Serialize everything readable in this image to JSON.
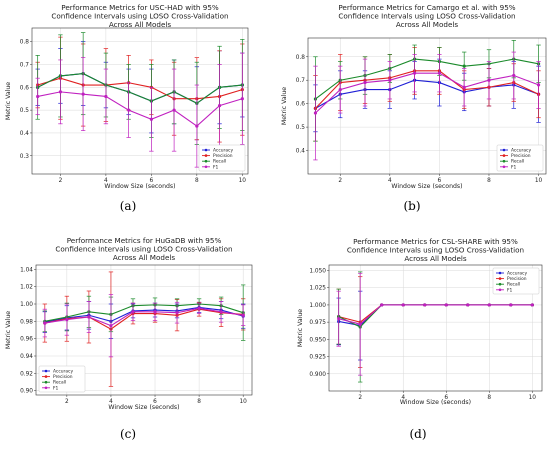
{
  "chart_data": [
    {
      "type": "line",
      "panel_label": "(a)",
      "title": [
        "Performance Metrics for USC-HAD with 95%",
        "Confidence Intervals using LOSO Cross-Validation",
        "Across All Models"
      ],
      "xlabel": "Window Size (seconds)",
      "ylabel": "Metric Value",
      "xlim": [
        0.75,
        10.25
      ],
      "ylim": [
        0.22,
        0.86
      ],
      "xticks": [
        2,
        4,
        6,
        8,
        10
      ],
      "yticks": [
        0.3,
        0.4,
        0.5,
        0.6,
        0.7,
        0.8
      ],
      "grid": true,
      "legend_position": "bottom-right",
      "x": [
        1,
        2,
        3,
        4,
        5,
        6,
        7,
        8,
        9,
        10
      ],
      "series": [
        {
          "name": "Accuracy",
          "color": "#1f1fd6",
          "values": [
            0.6,
            0.65,
            0.66,
            0.61,
            0.58,
            0.54,
            0.58,
            0.53,
            0.6,
            0.61
          ],
          "ci": [
            0.08,
            0.12,
            0.14,
            0.1,
            0.1,
            0.14,
            0.14,
            0.16,
            0.16,
            0.14
          ]
        },
        {
          "name": "Precision",
          "color": "#e02020",
          "values": [
            0.61,
            0.64,
            0.61,
            0.61,
            0.62,
            0.6,
            0.55,
            0.55,
            0.56,
            0.59
          ],
          "ci": [
            0.1,
            0.18,
            0.18,
            0.16,
            0.12,
            0.12,
            0.16,
            0.18,
            0.2,
            0.2
          ]
        },
        {
          "name": "Recall",
          "color": "#1a8a2a",
          "values": [
            0.6,
            0.65,
            0.66,
            0.61,
            0.58,
            0.54,
            0.58,
            0.53,
            0.6,
            0.61
          ],
          "ci": [
            0.14,
            0.18,
            0.18,
            0.14,
            0.12,
            0.16,
            0.14,
            0.18,
            0.18,
            0.2
          ]
        },
        {
          "name": "F1",
          "color": "#c020c0",
          "values": [
            0.56,
            0.58,
            0.57,
            0.56,
            0.5,
            0.46,
            0.5,
            0.43,
            0.52,
            0.55
          ],
          "ci": [
            0.08,
            0.14,
            0.16,
            0.12,
            0.12,
            0.14,
            0.18,
            0.18,
            0.18,
            0.2
          ]
        }
      ]
    },
    {
      "type": "line",
      "panel_label": "(b)",
      "title": [
        "Performance Metrics for Camargo et al. with 95%",
        "Confidence Intervals using LOSO Cross-Validation",
        "Across All Models"
      ],
      "xlabel": "Window Size (seconds)",
      "ylabel": "Metric Value",
      "xlim": [
        0.7,
        10.3
      ],
      "ylim": [
        0.3,
        0.88
      ],
      "xticks": [
        2,
        4,
        6,
        8,
        10
      ],
      "yticks": [
        0.4,
        0.5,
        0.6,
        0.7,
        0.8
      ],
      "grid": true,
      "legend_position": "bottom-right",
      "x": [
        1,
        2,
        3,
        4,
        5,
        6,
        7,
        8,
        9,
        10
      ],
      "series": [
        {
          "name": "Accuracy",
          "color": "#1f1fd6",
          "values": [
            0.58,
            0.64,
            0.66,
            0.66,
            0.7,
            0.69,
            0.65,
            0.67,
            0.68,
            0.64
          ],
          "ci": [
            0.1,
            0.1,
            0.08,
            0.08,
            0.08,
            0.1,
            0.08,
            0.08,
            0.1,
            0.12
          ]
        },
        {
          "name": "Precision",
          "color": "#e02020",
          "values": [
            0.58,
            0.69,
            0.7,
            0.71,
            0.74,
            0.74,
            0.66,
            0.67,
            0.69,
            0.64
          ],
          "ci": [
            0.14,
            0.12,
            0.1,
            0.1,
            0.1,
            0.1,
            0.08,
            0.08,
            0.08,
            0.1
          ]
        },
        {
          "name": "Recall",
          "color": "#1a8a2a",
          "values": [
            0.62,
            0.7,
            0.72,
            0.75,
            0.79,
            0.78,
            0.76,
            0.77,
            0.79,
            0.77
          ],
          "ci": [
            0.18,
            0.08,
            0.08,
            0.06,
            0.06,
            0.06,
            0.06,
            0.06,
            0.08,
            0.08
          ]
        },
        {
          "name": "F1",
          "color": "#c020c0",
          "values": [
            0.56,
            0.66,
            0.69,
            0.7,
            0.73,
            0.73,
            0.67,
            0.7,
            0.72,
            0.68
          ],
          "ci": [
            0.2,
            0.1,
            0.1,
            0.08,
            0.08,
            0.08,
            0.08,
            0.08,
            0.1,
            0.1
          ]
        }
      ]
    },
    {
      "type": "line",
      "panel_label": "(c)",
      "title": [
        "Performance Metrics for HuGaDB with 95%",
        "Confidence Intervals using LOSO Cross-Validation",
        "Across All Models"
      ],
      "xlabel": "Window Size (seconds)",
      "ylabel": "Metric Value",
      "xlim": [
        0.6,
        10.4
      ],
      "ylim": [
        0.895,
        1.045
      ],
      "xticks": [
        2,
        4,
        6,
        8,
        10
      ],
      "yticks": [
        0.9,
        0.92,
        0.94,
        0.96,
        0.98,
        1.0,
        1.02,
        1.04
      ],
      "grid": true,
      "legend_position": "bottom-left",
      "x": [
        1,
        2,
        3,
        4,
        5,
        6,
        7,
        8,
        9,
        10
      ],
      "series": [
        {
          "name": "Accuracy",
          "color": "#1f1fd6",
          "values": [
            0.979,
            0.984,
            0.987,
            0.98,
            0.992,
            0.993,
            0.992,
            0.996,
            0.993,
            0.986
          ],
          "ci": [
            0.012,
            0.014,
            0.016,
            0.02,
            0.008,
            0.008,
            0.008,
            0.006,
            0.01,
            0.014
          ]
        },
        {
          "name": "Precision",
          "color": "#e02020",
          "values": [
            0.978,
            0.983,
            0.985,
            0.971,
            0.989,
            0.989,
            0.987,
            0.994,
            0.99,
            0.988
          ],
          "ci": [
            0.022,
            0.026,
            0.03,
            0.066,
            0.012,
            0.01,
            0.018,
            0.008,
            0.016,
            0.018
          ]
        },
        {
          "name": "Recall",
          "color": "#1a8a2a",
          "values": [
            0.98,
            0.985,
            0.991,
            0.988,
            0.998,
            0.999,
            0.998,
            1.0,
            0.998,
            0.99
          ],
          "ci": [
            0.012,
            0.016,
            0.018,
            0.02,
            0.008,
            0.008,
            0.008,
            0.006,
            0.01,
            0.032
          ]
        },
        {
          "name": "F1",
          "color": "#c020c0",
          "values": [
            0.978,
            0.982,
            0.985,
            0.975,
            0.991,
            0.991,
            0.99,
            0.995,
            0.991,
            0.987
          ],
          "ci": [
            0.016,
            0.018,
            0.018,
            0.036,
            0.01,
            0.01,
            0.012,
            0.006,
            0.012,
            0.012
          ]
        }
      ]
    },
    {
      "type": "line",
      "panel_label": "(d)",
      "title": [
        "Performance Metrics for CSL-SHARE with 95%",
        "Confidence Intervals using LOSO Cross-Validation",
        "Across All Models"
      ],
      "xlabel": "Window Size (seconds)",
      "ylabel": "Metric Value",
      "xlim": [
        0.55,
        10.45
      ],
      "ylim": [
        0.875,
        1.058
      ],
      "xticks": [
        2,
        4,
        6,
        8,
        10
      ],
      "yticks": [
        0.9,
        0.925,
        0.95,
        0.975,
        1.0,
        1.025,
        1.05
      ],
      "grid": true,
      "legend_position": "top-right",
      "x": [
        1,
        2,
        3,
        4,
        5,
        6,
        7,
        8,
        9,
        10
      ],
      "series": [
        {
          "name": "Accuracy",
          "color": "#1f1fd6",
          "values": [
            0.976,
            0.97,
            1.0,
            1.0,
            1.0,
            1.0,
            1.0,
            1.0,
            1.0,
            1.0
          ],
          "ci": [
            0.034,
            0.05,
            0,
            0,
            0,
            0,
            0,
            0,
            0,
            0
          ]
        },
        {
          "name": "Precision",
          "color": "#e02020",
          "values": [
            0.983,
            0.975,
            1.0,
            1.0,
            1.0,
            1.0,
            1.0,
            1.0,
            1.0,
            1.0
          ],
          "ci": [
            0.04,
            0.066,
            0,
            0,
            0,
            0,
            0,
            0,
            0,
            0
          ]
        },
        {
          "name": "Recall",
          "color": "#1a8a2a",
          "values": [
            0.983,
            0.968,
            1.0,
            1.0,
            1.0,
            1.0,
            1.0,
            1.0,
            1.0,
            1.0
          ],
          "ci": [
            0.04,
            0.08,
            0,
            0,
            0,
            0,
            0,
            0,
            0,
            0
          ]
        },
        {
          "name": "F1",
          "color": "#c020c0",
          "values": [
            0.98,
            0.972,
            1.0,
            1.0,
            1.0,
            1.0,
            1.0,
            1.0,
            1.0,
            1.0
          ],
          "ci": [
            0.04,
            0.074,
            0,
            0,
            0,
            0,
            0,
            0,
            0,
            0
          ]
        }
      ]
    }
  ]
}
